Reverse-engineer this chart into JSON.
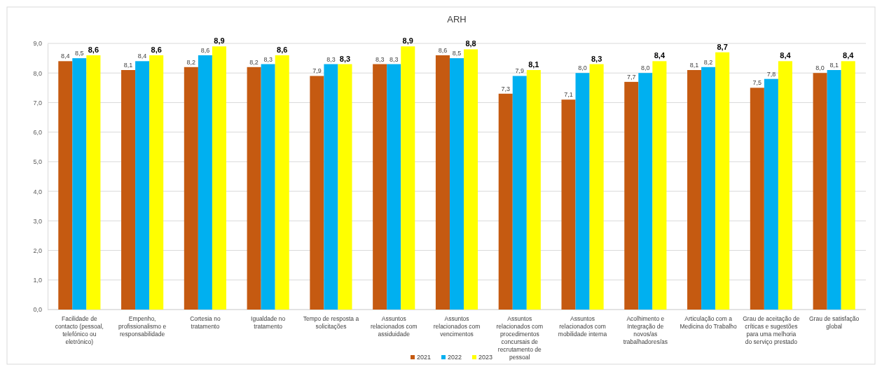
{
  "chart_data": {
    "type": "bar",
    "title": "ARH",
    "categories": [
      "Facilidade de contacto (pessoal, telefónico ou eletrónico)",
      "Empenho, profissionalismo e responsabilidade",
      "Cortesia no tratamento",
      "Igualdade no tratamento",
      "Tempo de resposta a solicitações",
      "Assuntos relacionados com assiduidade",
      "Assuntos relacionados com vencimentos",
      "Assuntos relacionados com procedimentos concursais de recrutamento de pessoal",
      "Assuntos relacionados com mobilidade interna",
      "Acolhimento e Integração de novos/as trabalhadores/as",
      "Articulação com a Medicina do Trabalho",
      "Grau de aceitação de críticas e sugestões para uma melhoria do serviço prestado",
      "Grau de satisfação global"
    ],
    "series": [
      {
        "name": "2021",
        "color": "#c55a11",
        "values": [
          8.4,
          8.1,
          8.2,
          8.2,
          7.9,
          8.3,
          8.6,
          7.3,
          7.1,
          7.7,
          8.1,
          7.5,
          8.0
        ],
        "value_labels": [
          "8,4",
          "8,1",
          "8,2",
          "8,2",
          "7,9",
          "8,3",
          "8,6",
          "7,3",
          "7,1",
          "7,7",
          "8,1",
          "7,5",
          "8,0"
        ]
      },
      {
        "name": "2022",
        "color": "#00b0f0",
        "values": [
          8.5,
          8.4,
          8.6,
          8.3,
          8.3,
          8.3,
          8.5,
          7.9,
          8.0,
          8.0,
          8.2,
          7.8,
          8.1
        ],
        "value_labels": [
          "8,5",
          "8,4",
          "8,6",
          "8,3",
          "8,3",
          "8,3",
          "8,5",
          "7,9",
          "8,0",
          "8,0",
          "8,2",
          "7,8",
          "8,1"
        ]
      },
      {
        "name": "2023",
        "color": "#ffff00",
        "values": [
          8.6,
          8.6,
          8.9,
          8.6,
          8.3,
          8.9,
          8.8,
          8.1,
          8.3,
          8.4,
          8.7,
          8.4,
          8.4
        ],
        "value_labels": [
          "8,6",
          "8,6",
          "8,9",
          "8,6",
          "8,3",
          "8,9",
          "8,8",
          "8,1",
          "8,3",
          "8,4",
          "8,7",
          "8,4",
          "8,4"
        ]
      }
    ],
    "ylim": [
      0,
      9
    ],
    "yticks": [
      {
        "value": 0,
        "label": "0,0"
      },
      {
        "value": 1,
        "label": "1,0"
      },
      {
        "value": 2,
        "label": "2,0"
      },
      {
        "value": 3,
        "label": "3,0"
      },
      {
        "value": 4,
        "label": "4,0"
      },
      {
        "value": 5,
        "label": "5,0"
      },
      {
        "value": 6,
        "label": "6,0"
      },
      {
        "value": 7,
        "label": "7,0"
      },
      {
        "value": 8,
        "label": "8,0"
      },
      {
        "value": 9,
        "label": "9,0"
      }
    ],
    "grid": "y",
    "legend": "bottom"
  }
}
